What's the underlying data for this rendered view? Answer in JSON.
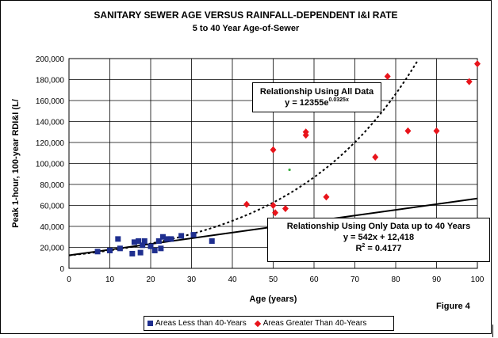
{
  "title": "SANITARY SEWER AGE VERSUS RAINFALL-DEPENDENT I&I RATE",
  "subtitle": "5 to 40 Year Age-of-Sewer",
  "figure_label": "Figure 4",
  "annotation_all": {
    "heading": "Relationship Using All Data",
    "formula_prefix": "y = 12355e",
    "formula_exponent": "0.0325x"
  },
  "annotation_40": {
    "heading": "Relationship Using Only Data up to 40 Years",
    "formula": "y = 542x + 12,418",
    "r2_prefix": "R",
    "r2_exponent": "2",
    "r2_value": " = 0.4177"
  },
  "legend": {
    "series1": "Areas Less than 40-Years",
    "series2": "Areas Greater Than 40-Years"
  },
  "colors": {
    "series1": "#1f2f8f",
    "series2": "#e8141b",
    "stray_point": "#3cb043"
  },
  "chart_data": {
    "type": "scatter",
    "title": "SANITARY SEWER AGE VERSUS RAINFALL-DEPENDENT I&I RATE",
    "subtitle": "5 to 40 Year Age-of-Sewer",
    "xlabel": "Age (years)",
    "ylabel": "Peak 1-hour, 100-year RDI&I  (L/",
    "xlim": [
      0,
      100
    ],
    "ylim": [
      0,
      200000
    ],
    "x_ticks": [
      0,
      10,
      20,
      30,
      40,
      50,
      60,
      70,
      80,
      90,
      100
    ],
    "y_ticks": [
      "0",
      "20,000",
      "40,000",
      "60,000",
      "80,000",
      "100,000",
      "120,000",
      "140,000",
      "160,000",
      "180,000",
      "200,000"
    ],
    "y_tick_values": [
      0,
      20000,
      40000,
      60000,
      80000,
      100000,
      120000,
      140000,
      160000,
      180000,
      200000
    ],
    "grid": true,
    "legend_position": "bottom",
    "series": [
      {
        "name": "Areas Less than 40-Years",
        "marker": "square",
        "points": [
          [
            7,
            16000
          ],
          [
            10,
            17000
          ],
          [
            12,
            28000
          ],
          [
            12.5,
            19000
          ],
          [
            15.5,
            14000
          ],
          [
            16,
            25000
          ],
          [
            17,
            26000
          ],
          [
            17.5,
            15000
          ],
          [
            18,
            22000
          ],
          [
            18.5,
            26000
          ],
          [
            20,
            21000
          ],
          [
            21,
            17000
          ],
          [
            22,
            26000
          ],
          [
            22.5,
            19000
          ],
          [
            23,
            30000
          ],
          [
            24,
            28000
          ],
          [
            25,
            28000
          ],
          [
            27.5,
            31000
          ],
          [
            30.5,
            32000
          ],
          [
            35,
            26000
          ]
        ]
      },
      {
        "name": "Areas Greater Than 40-Years",
        "marker": "diamond",
        "points": [
          [
            43.5,
            61000
          ],
          [
            50,
            60000
          ],
          [
            50,
            113000
          ],
          [
            50.5,
            53000
          ],
          [
            53,
            57000
          ],
          [
            58,
            130000
          ],
          [
            58,
            127000
          ],
          [
            63,
            68000
          ],
          [
            75,
            106000
          ],
          [
            78,
            183000
          ],
          [
            83,
            131000
          ],
          [
            90,
            131000
          ],
          [
            98,
            178000
          ],
          [
            100,
            195000
          ]
        ]
      }
    ],
    "other_marks": [
      [
        54,
        94000
      ]
    ],
    "trendlines": [
      {
        "label": "Relationship Using All Data",
        "kind": "exponential",
        "a": 12355,
        "b": 0.0325,
        "style": "dotted"
      },
      {
        "label": "Relationship Using Only Data up to 40 Years",
        "kind": "linear",
        "slope": 542,
        "intercept": 12418,
        "style": "solid"
      }
    ]
  }
}
